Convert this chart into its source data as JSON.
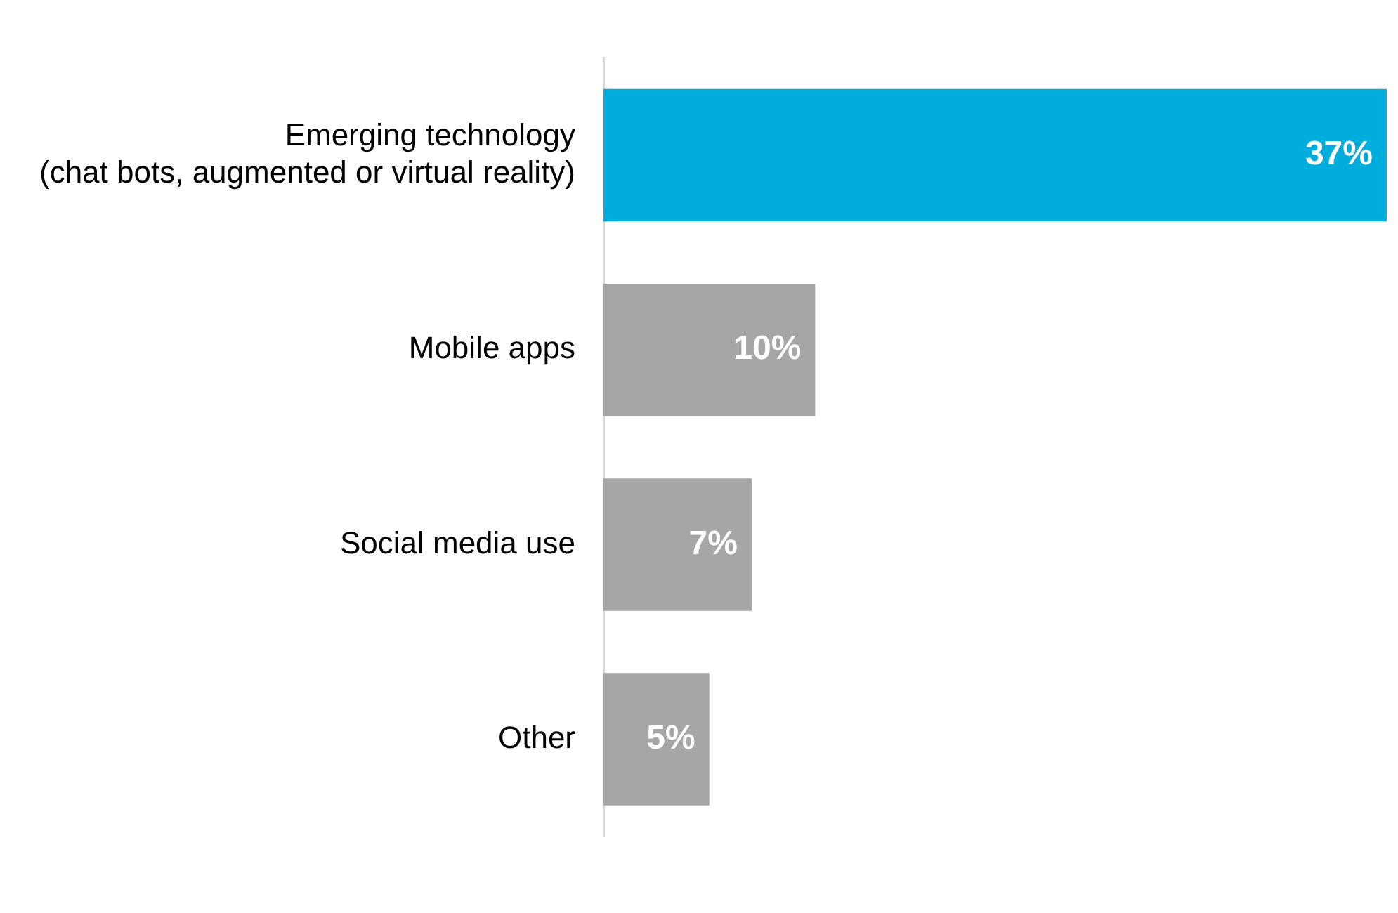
{
  "chart_data": {
    "type": "bar",
    "orientation": "horizontal",
    "categories": [
      "Emerging technology\n(chat bots, augmented or virtual reality)",
      "Mobile apps",
      "Social media use",
      "Other"
    ],
    "values": [
      37,
      10,
      7,
      5
    ],
    "colors": [
      "#00addc",
      "#a6a6a6",
      "#a6a6a6",
      "#a6a6a6"
    ],
    "value_labels": [
      "37%",
      "10%",
      "7%",
      "5%"
    ]
  }
}
